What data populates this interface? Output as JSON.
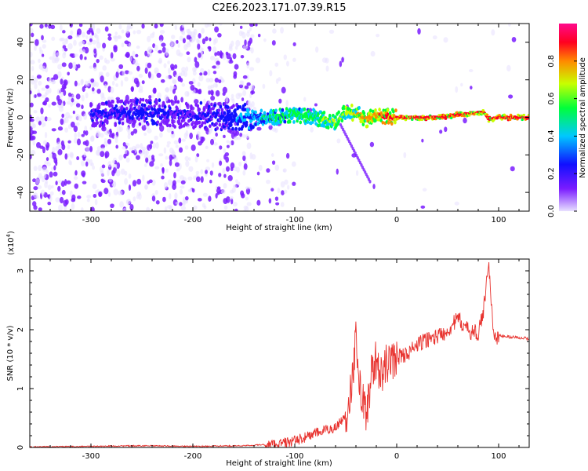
{
  "title": "C2E6.2023.171.07.39.R15",
  "colors": {
    "snr_line": "#e8322e",
    "axis": "#000000",
    "spectrogram_bg": "#ffffff",
    "colorbar_stops": [
      "#e8e0ff",
      "#7a1cff",
      "#1010ff",
      "#00c8ff",
      "#00ff3a",
      "#c8ff00",
      "#ff8a00",
      "#ff0020",
      "#ff0a8c"
    ]
  },
  "chart_data": [
    {
      "id": "spectrogram",
      "type": "heatmap",
      "xlabel": "Height of straight line (km)",
      "ylabel": "Frequency (Hz)",
      "xlim": [
        -360,
        130
      ],
      "ylim": [
        -50,
        50
      ],
      "xticks": [
        -300,
        -200,
        -100,
        0,
        100
      ],
      "yticks": [
        -40,
        -20,
        0,
        20,
        40
      ],
      "colorbar": {
        "label": "Normalized spectral amplitude",
        "range": [
          0,
          1
        ],
        "ticks": [
          "0.0",
          "0.2",
          "0.4",
          "0.6",
          "0.8"
        ],
        "tick_values": [
          0.0,
          0.2,
          0.4,
          0.6,
          0.8
        ]
      },
      "signal_track": {
        "x": [
          -290,
          -250,
          -200,
          -160,
          -130,
          -100,
          -80,
          -60,
          -50,
          -40,
          -30,
          -20,
          0,
          40,
          85,
          90,
          100,
          130
        ],
        "frequency": [
          2,
          3,
          1,
          0,
          0,
          1,
          0,
          -3,
          3,
          2,
          -1,
          1,
          0,
          0,
          3,
          -1,
          0,
          0
        ],
        "amplitude": [
          0.2,
          0.25,
          0.2,
          0.3,
          0.45,
          0.55,
          0.55,
          0.6,
          0.65,
          0.7,
          0.75,
          0.8,
          0.9,
          0.92,
          0.9,
          0.88,
          0.92,
          0.92
        ]
      }
    },
    {
      "id": "snr",
      "type": "line",
      "xlabel": "Height of straight line (km)",
      "ylabel": "SNR (10 * v/v)",
      "y_multiplier": "(x10",
      "y_multiplier_exp": "4",
      "y_multiplier_close": ")",
      "xlim": [
        -360,
        130
      ],
      "ylim": [
        0,
        3.2
      ],
      "xticks": [
        -300,
        -200,
        -100,
        0,
        100
      ],
      "yticks": [
        0,
        1,
        2,
        3
      ],
      "series": [
        {
          "x": [
            -360,
            -300,
            -250,
            -200,
            -150,
            -120,
            -100,
            -90,
            -80,
            -70,
            -60,
            -50,
            -45,
            -40,
            -35,
            -30,
            -25,
            -20,
            -15,
            -10,
            -5,
            0,
            10,
            20,
            30,
            40,
            50,
            60,
            70,
            80,
            85,
            90,
            95,
            100,
            110,
            120,
            130
          ],
          "values": [
            0.01,
            0.02,
            0.03,
            0.02,
            0.03,
            0.06,
            0.12,
            0.18,
            0.25,
            0.3,
            0.35,
            0.55,
            1.05,
            1.85,
            0.95,
            0.6,
            1.25,
            1.55,
            1.2,
            1.45,
            1.5,
            1.55,
            1.6,
            1.75,
            1.85,
            1.9,
            2.0,
            2.2,
            2.0,
            1.95,
            2.3,
            3.2,
            1.9,
            1.9,
            1.88,
            1.87,
            1.85
          ]
        }
      ]
    }
  ]
}
